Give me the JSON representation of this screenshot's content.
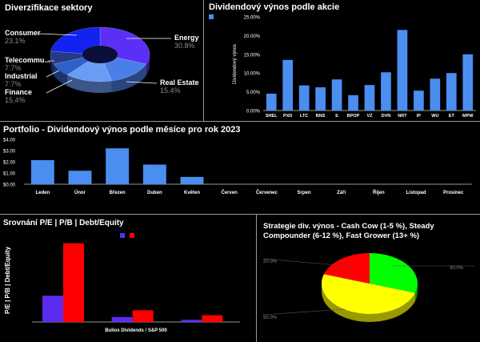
{
  "colors": {
    "background": "#000000",
    "divider": "#9a9a9a",
    "bar_blue": "#4a8ef0",
    "indigo": "#5b2cf0",
    "red": "#ff0000",
    "green": "#00ff00",
    "yellow": "#ffff00",
    "label_gray": "#8a8a8a",
    "axis_gray": "#cccccc"
  },
  "chart_data": [
    {
      "id": "sector-donut",
      "type": "pie",
      "title": "Diverzifikace sektory",
      "slices": [
        {
          "label": "Energy",
          "value": 30.8,
          "value_label": "30.8%",
          "color": "#5b2ff5"
        },
        {
          "label": "Real Estate",
          "value": 15.4,
          "value_label": "15.4%",
          "color": "#4a7fe8"
        },
        {
          "label": "Finance",
          "value": 15.4,
          "value_label": "15.4%",
          "color": "#6b9cf5"
        },
        {
          "label": "Industrial",
          "value": 7.7,
          "value_label": "7.7%",
          "color": "#2f5fc8"
        },
        {
          "label": "Telecommu...",
          "value": 7.7,
          "value_label": "7.7%",
          "color": "#243a88"
        },
        {
          "label": "Consumer",
          "value": 23.1,
          "value_label": "23.1%",
          "color": "#1222f0"
        }
      ]
    },
    {
      "id": "dividend-yield-by-stock",
      "type": "bar",
      "title": "Dividendový výnos podle akcie",
      "ylabel": "Dividendový výnos",
      "ylim": [
        0,
        25
      ],
      "yticks": [
        "0.00%",
        "5.00%",
        "10.00%",
        "15.00%",
        "20.00%",
        "25.00%"
      ],
      "categories": [
        "SHEL",
        "PXD",
        "LTC",
        "BNS",
        "E",
        "BPOP",
        "VZ",
        "DVN",
        "NRT",
        "IP",
        "WU",
        "ET",
        "MPW"
      ],
      "values": [
        4.5,
        13.5,
        6.7,
        6.2,
        8.3,
        4.1,
        6.8,
        10.2,
        21.5,
        5.3,
        8.5,
        10.0,
        15.0
      ]
    },
    {
      "id": "monthly-dividend",
      "type": "bar",
      "title": "Portfolio - Dividendový výnos podle měsíce pro rok 2023",
      "ylim": [
        0,
        4
      ],
      "yticks": [
        "$0.00",
        "$1.00",
        "$2.00",
        "$3.00",
        "$4.00"
      ],
      "categories": [
        "Leden",
        "Únor",
        "Březen",
        "Duben",
        "Květen",
        "Červen",
        "Červenec",
        "Srpen",
        "Září",
        "Říjen",
        "Listopad",
        "Prosinec"
      ],
      "values": [
        2.15,
        1.2,
        3.2,
        1.75,
        0.65,
        0,
        0,
        0,
        0,
        0,
        0,
        0
      ]
    },
    {
      "id": "pe-pb-de",
      "type": "bar",
      "title": "Srovnání P/E | P/B | Debt/Equity",
      "ylabel": "P/E | P/B | Debt/Equity",
      "xlabel": "Bulios Dividends / S&P 500",
      "ylim": [
        0,
        27
      ],
      "groups": 3,
      "series": [
        {
          "color": "#5b2cf0",
          "values": [
            8.5,
            1.6,
            0.7
          ]
        },
        {
          "color": "#ff0000",
          "values": [
            25.5,
            3.8,
            2.2
          ]
        }
      ]
    },
    {
      "id": "dividend-strategy-pie",
      "type": "pie",
      "title_lines": [
        "Strategie div. výnos - Cash Cow (1-5 %), Steady",
        "Compounder (6-12 %), Fast Grower (13+ %)"
      ],
      "slices": [
        {
          "value": 30.0,
          "value_label": "30.0%",
          "color": "#00ff00"
        },
        {
          "value": 50.0,
          "value_label": "50.0%",
          "color": "#ffff00"
        },
        {
          "value": 20.0,
          "value_label": "20.0%",
          "color": "#ff0000"
        }
      ]
    }
  ]
}
